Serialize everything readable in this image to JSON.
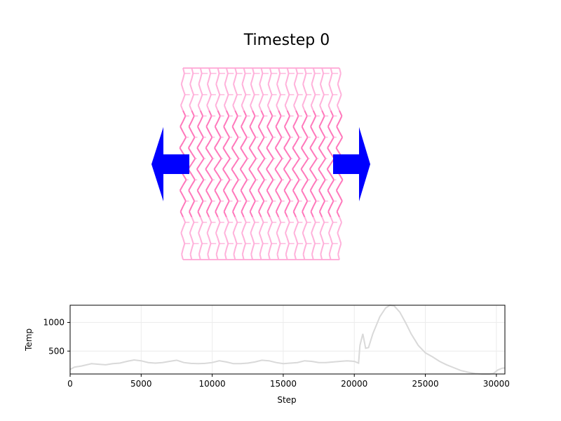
{
  "title": "Timestep 0",
  "colors": {
    "arrow": "#0000ff",
    "lattice": "#ff69b4",
    "lattice_light": "#ffa8d6",
    "series_line": "#d9d9d9",
    "grid": "#ececec"
  },
  "chart_data": {
    "type": "line",
    "xlabel": "Step",
    "ylabel": "Temp",
    "xlim": [
      0,
      30600
    ],
    "ylim": [
      100,
      1300
    ],
    "xticks": [
      0,
      5000,
      10000,
      15000,
      20000,
      25000,
      30000
    ],
    "xtick_labels": [
      "0",
      "5000",
      "10000",
      "15000",
      "20000",
      "25000",
      "30000"
    ],
    "yticks": [
      500,
      1000
    ],
    "ytick_labels": [
      "500",
      "1000"
    ],
    "grid": true,
    "series": [
      {
        "x": [
          0,
          300,
          800,
          1500,
          2000,
          2500,
          3000,
          3500,
          4000,
          4500,
          5000,
          5500,
          6000,
          6500,
          7000,
          7500,
          8000,
          8500,
          9000,
          9500,
          10000,
          10500,
          11000,
          11500,
          12000,
          12500,
          13000,
          13500,
          14000,
          14500,
          15000,
          15500,
          16000,
          16500,
          17000,
          17500,
          18000,
          18500,
          19000,
          19500,
          20000,
          20300,
          20400,
          20600,
          20800,
          21000,
          21300,
          21800,
          22200,
          22500,
          22800,
          23200,
          23600,
          24000,
          24500,
          25000,
          25500,
          26000,
          26500,
          27000,
          27500,
          28000,
          28500,
          29000,
          29500,
          29800,
          30100,
          30400,
          30600
        ],
        "values": [
          180,
          220,
          240,
          280,
          270,
          260,
          280,
          290,
          320,
          345,
          330,
          300,
          290,
          300,
          320,
          340,
          300,
          285,
          280,
          285,
          300,
          330,
          310,
          280,
          280,
          290,
          310,
          340,
          330,
          300,
          280,
          290,
          300,
          330,
          320,
          300,
          300,
          310,
          320,
          330,
          320,
          290,
          600,
          800,
          550,
          560,
          800,
          1100,
          1250,
          1310,
          1290,
          1180,
          1000,
          800,
          600,
          470,
          400,
          320,
          260,
          210,
          160,
          130,
          110,
          100,
          100,
          110,
          170,
          200,
          205
        ]
      }
    ]
  }
}
